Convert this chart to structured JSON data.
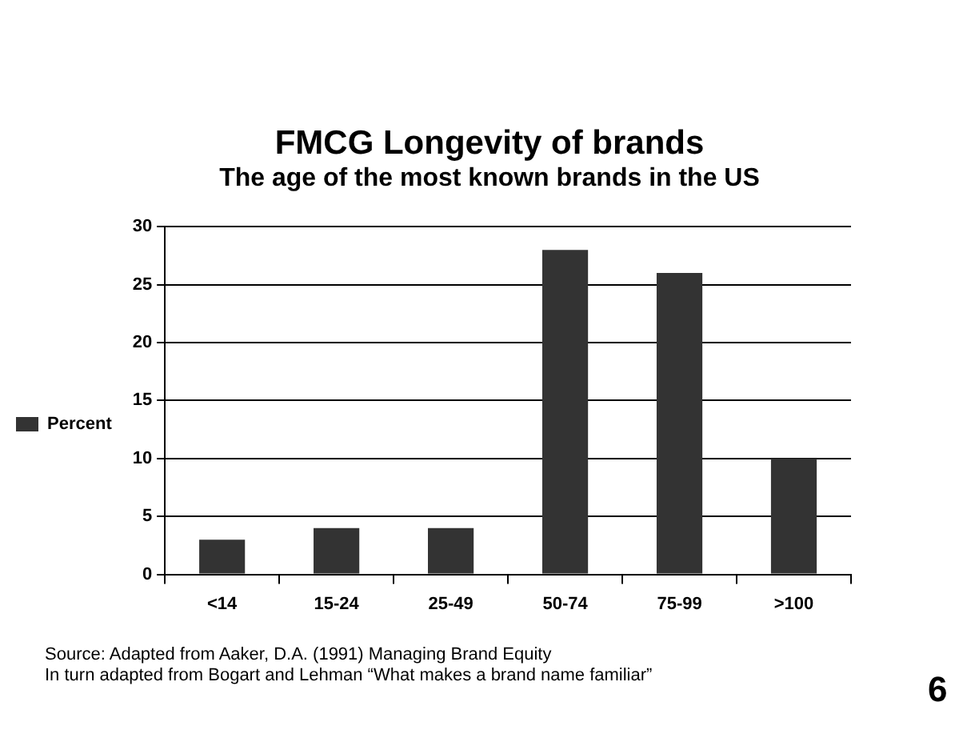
{
  "chart_data": {
    "type": "bar",
    "title": "FMCG Longevity of brands",
    "subtitle": "The age of the most known brands in the US",
    "categories": [
      "<14",
      "15-24",
      "25-49",
      "50-74",
      "75-99",
      ">100"
    ],
    "series": [
      {
        "name": "Percent",
        "color": "#333333",
        "values": [
          3,
          4,
          4,
          28,
          26,
          10
        ]
      }
    ],
    "ylim": [
      0,
      30
    ],
    "yticks": [
      0,
      5,
      10,
      15,
      20,
      25,
      30
    ],
    "grid": "y",
    "legend": "left",
    "annotations": [
      "Source: Adapted from Aaker, D.A. (1991) Managing Brand Equity",
      "In turn adapted from Bogart and Lehman “What makes a brand name familiar”",
      "6"
    ]
  }
}
